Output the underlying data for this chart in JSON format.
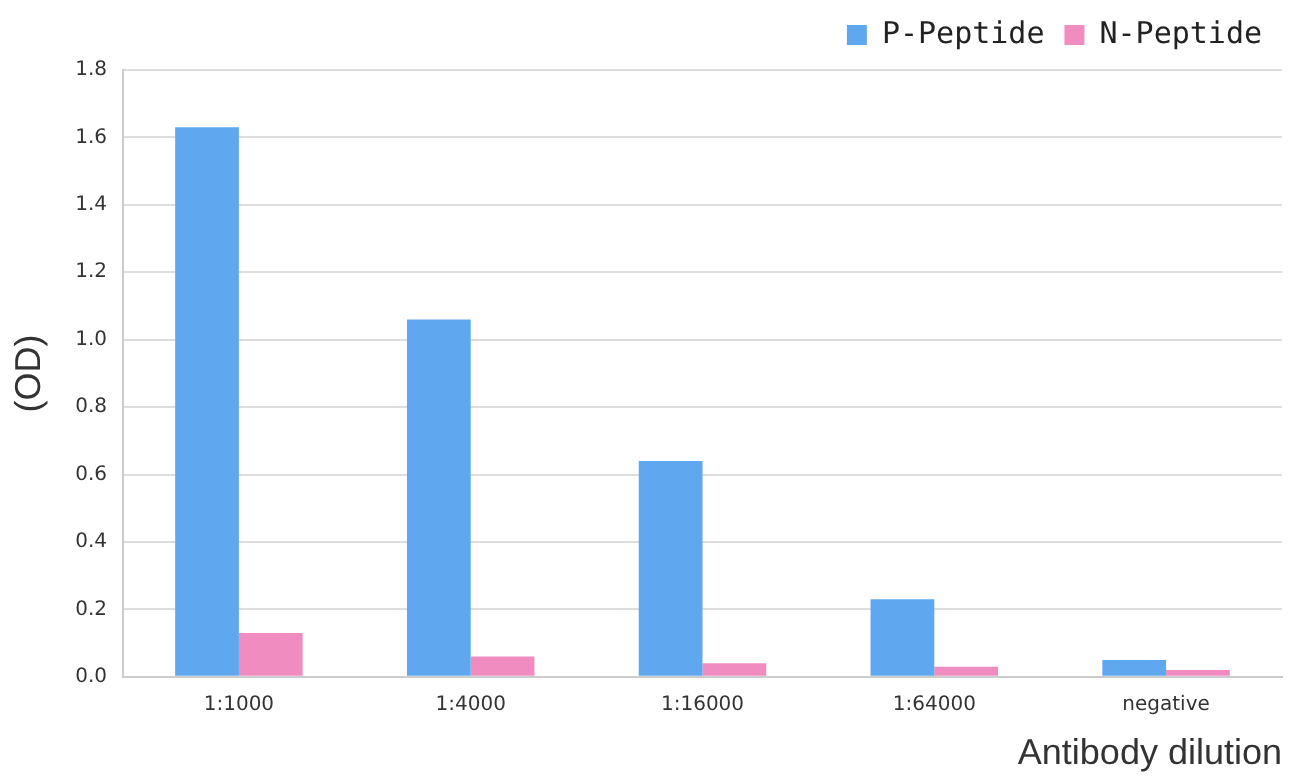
{
  "chart_data": {
    "type": "bar",
    "xlabel": "Antibody dilution",
    "ylabel": "(OD)",
    "categories": [
      "1:1000",
      "1:4000",
      "1:16000",
      "1:64000",
      "negative"
    ],
    "series": [
      {
        "name": "P-Peptide",
        "color": "#5fa8f0",
        "values": [
          1.63,
          1.06,
          0.64,
          0.23,
          0.05
        ]
      },
      {
        "name": "N-Peptide",
        "color": "#f08cc0",
        "values": [
          0.13,
          0.06,
          0.04,
          0.03,
          0.02
        ]
      }
    ],
    "ylim": [
      0,
      1.8
    ],
    "yticks": [
      {
        "value": 0,
        "label": "0.0"
      },
      0.2,
      0.4,
      0.6,
      0.8,
      {
        "value": 1,
        "label": "1.0"
      },
      1.2,
      1.4,
      1.6,
      1.8
    ],
    "grid": "y",
    "legend": "top right"
  }
}
